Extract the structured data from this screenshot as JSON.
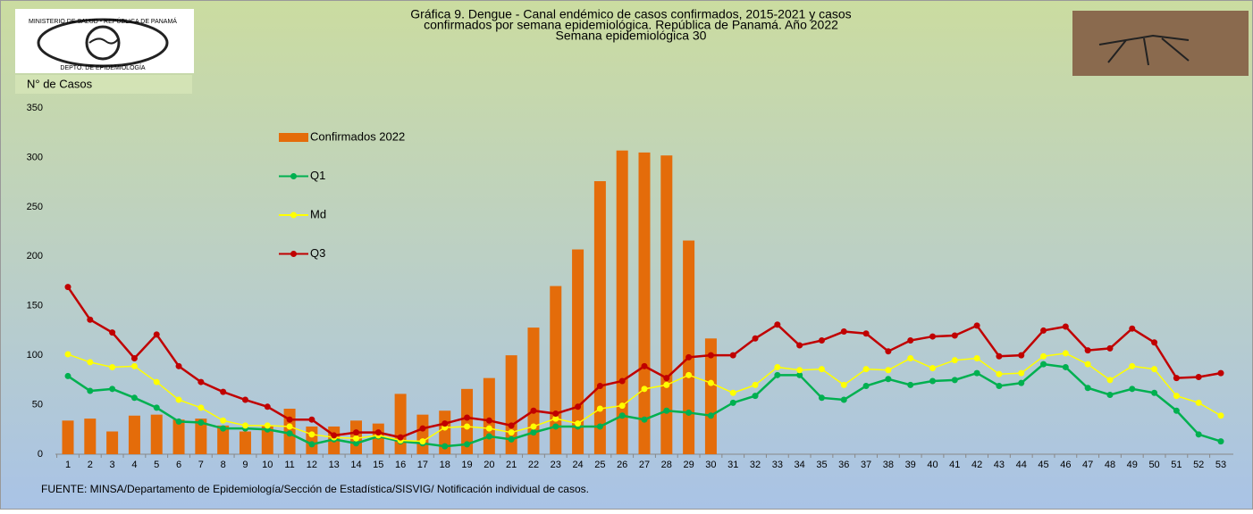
{
  "chart_data": {
    "type": "combo",
    "title": [
      "Gráfica 9. Dengue - Canal endémico de casos confirmados, 2015-2021 y casos",
      "confirmados por semana epidemiológica. República de Panamá. Año 2022",
      "Semana epidemiológica 30"
    ],
    "logo_text": [
      "MINISTERIO DE SALUD - REPÚBLICA DE PANAMÁ",
      "DEPTO. DE EPIDEMIOLOGÍA"
    ],
    "y_label": "N° de Casos",
    "source": "FUENTE: MINSA/Departamento de Epidemiología/Sección de Estadística/SISVIG/ Notificación individual de casos.",
    "categories": [
      "1",
      "2",
      "3",
      "4",
      "5",
      "6",
      "7",
      "8",
      "9",
      "10",
      "11",
      "12",
      "13",
      "14",
      "15",
      "16",
      "17",
      "18",
      "19",
      "20",
      "21",
      "22",
      "23",
      "24",
      "25",
      "26",
      "27",
      "28",
      "29",
      "30",
      "31",
      "32",
      "33",
      "34",
      "35",
      "36",
      "37",
      "38",
      "39",
      "40",
      "41",
      "42",
      "43",
      "44",
      "45",
      "46",
      "47",
      "48",
      "49",
      "50",
      "51",
      "52",
      "53"
    ],
    "ylim": [
      0,
      350
    ],
    "yticks": [
      0,
      50,
      100,
      150,
      200,
      250,
      300,
      350
    ],
    "grid": false,
    "legend": "upper-left",
    "series": [
      {
        "name": "Confirmados 2022",
        "type": "bar",
        "color": "#e46c0a",
        "values": [
          34,
          36,
          23,
          39,
          40,
          35,
          36,
          29,
          23,
          29,
          46,
          28,
          28,
          34,
          31,
          61,
          40,
          44,
          66,
          77,
          100,
          128,
          170,
          207,
          276,
          307,
          305,
          302,
          216,
          117,
          null,
          null,
          null,
          null,
          null,
          null,
          null,
          null,
          null,
          null,
          null,
          null,
          null,
          null,
          null,
          null,
          null,
          null,
          null,
          null,
          null,
          null,
          null
        ]
      },
      {
        "name": "Q1",
        "type": "line",
        "color": "#00b050",
        "values": [
          79,
          64,
          66,
          57,
          47,
          33,
          32,
          26,
          26,
          25,
          21,
          10,
          15,
          11,
          18,
          13,
          11,
          8,
          10,
          18,
          15,
          22,
          28,
          28,
          28,
          39,
          35,
          44,
          42,
          39,
          52,
          59,
          80,
          80,
          57,
          55,
          69,
          76,
          70,
          74,
          75,
          82,
          69,
          72,
          91,
          88,
          67,
          60,
          66,
          62,
          44,
          20,
          13
        ]
      },
      {
        "name": "Md",
        "type": "line",
        "color": "#ffff00",
        "values": [
          101,
          93,
          88,
          89,
          73,
          55,
          47,
          34,
          29,
          29,
          28,
          20,
          17,
          16,
          19,
          14,
          13,
          27,
          28,
          26,
          22,
          28,
          36,
          31,
          46,
          49,
          66,
          70,
          80,
          72,
          62,
          70,
          88,
          85,
          86,
          70,
          86,
          85,
          97,
          87,
          95,
          97,
          81,
          82,
          99,
          102,
          91,
          75,
          89,
          86,
          59,
          52,
          39
        ]
      },
      {
        "name": "Q3",
        "type": "line",
        "color": "#c00000",
        "values": [
          169,
          136,
          123,
          97,
          121,
          89,
          73,
          63,
          55,
          48,
          35,
          35,
          19,
          22,
          22,
          17,
          26,
          31,
          37,
          34,
          29,
          44,
          41,
          48,
          69,
          74,
          89,
          77,
          98,
          100,
          100,
          117,
          131,
          110,
          115,
          124,
          122,
          104,
          115,
          119,
          120,
          130,
          99,
          100,
          125,
          129,
          105,
          107,
          127,
          113,
          77,
          78,
          82
        ]
      }
    ]
  }
}
